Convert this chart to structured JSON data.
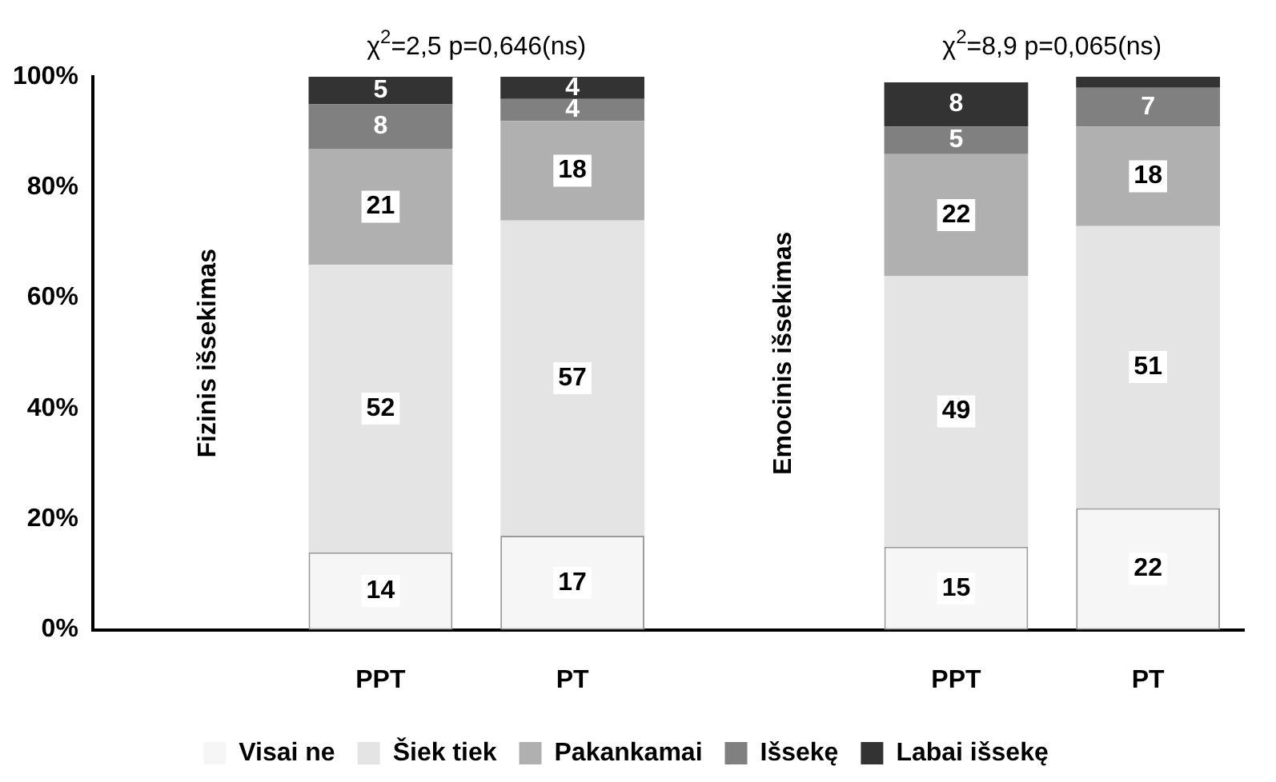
{
  "chart_data": {
    "type": "bar",
    "stacked": true,
    "categories": [
      null,
      "PPT",
      "PT",
      null,
      "PPT",
      "PT"
    ],
    "series": [
      {
        "name": "Visai ne",
        "color": "#f6f6f6",
        "values": [
          null,
          14,
          17,
          null,
          15,
          22
        ],
        "value_labels": [
          null,
          "14",
          "17",
          null,
          "15",
          "22"
        ]
      },
      {
        "name": "Šiek tiek",
        "color": "#e4e4e4",
        "values": [
          null,
          52,
          57,
          null,
          49,
          51
        ],
        "value_labels": [
          null,
          "52",
          "57",
          null,
          "49",
          "51"
        ]
      },
      {
        "name": "Pakankamai",
        "color": "#b0b0b0",
        "values": [
          null,
          21,
          18,
          null,
          22,
          18
        ],
        "value_labels": [
          null,
          "21",
          "18",
          null,
          "22",
          "18"
        ]
      },
      {
        "name": "Išsekę",
        "color": "#808080",
        "values": [
          null,
          8,
          4,
          null,
          5,
          7
        ],
        "value_labels": [
          null,
          "8",
          "4",
          null,
          "5",
          "7"
        ]
      },
      {
        "name": "Labai išsekę",
        "color": "#333333",
        "values": [
          null,
          5,
          4,
          null,
          8,
          2
        ],
        "value_labels": [
          null,
          "5",
          "4",
          null,
          "8",
          null
        ]
      }
    ],
    "ylim": [
      0,
      100
    ],
    "yticks": [
      {
        "value": 0,
        "label": "0%"
      },
      {
        "value": 20,
        "label": "20%"
      },
      {
        "value": 40,
        "label": "40%"
      },
      {
        "value": 60,
        "label": "60%"
      },
      {
        "value": 80,
        "label": "80%"
      },
      {
        "value": 100,
        "label": "100%"
      }
    ],
    "grid": false,
    "legend": "bottom",
    "annotations": [
      "χ$^{2}$=2,5 p=0,646(ns)",
      "χ$^{2}$=8,9 p=0,065(ns)",
      "Fizinis išsekimas",
      "Emocinis išsekimas"
    ]
  }
}
